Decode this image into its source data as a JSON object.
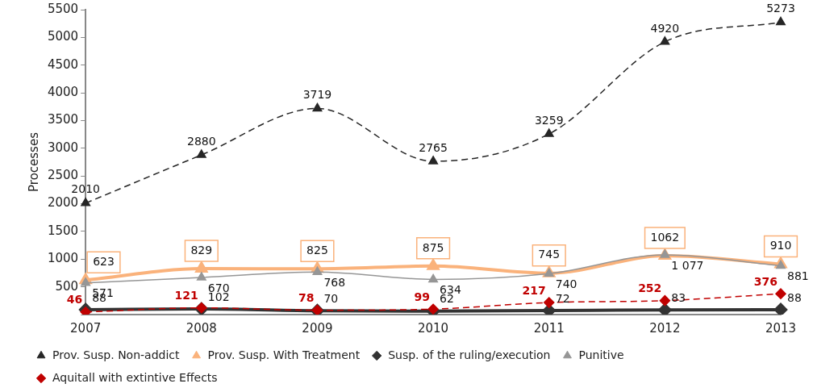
{
  "chart_data": {
    "type": "line",
    "ylabel": "Processes",
    "categories": [
      "2007",
      "2008",
      "2009",
      "2010",
      "2011",
      "2012",
      "2013"
    ],
    "ylim": [
      0,
      5500
    ],
    "yticks": [
      {
        "value": 0,
        "label": null
      },
      500,
      1000,
      1500,
      2000,
      2500,
      3000,
      3500,
      4000,
      4500,
      5000,
      5500
    ],
    "grid": false,
    "legend": "bottom",
    "series": [
      {
        "name": "Prov. Susp. Non-addict",
        "color": "#262626",
        "marker": "triangle",
        "line_style": "dashed",
        "values": [
          2010,
          2880,
          3719,
          2765,
          3259,
          4920,
          5273
        ]
      },
      {
        "name": "Prov. Susp. With Treatment",
        "color": "#fab27b",
        "marker": "triangle",
        "line_style": "solid",
        "values": [
          623,
          829,
          825,
          875,
          745,
          1062,
          910
        ]
      },
      {
        "name": "Susp. of the ruling/execution",
        "color": "#333333",
        "marker": "diamond",
        "line_style": "solid",
        "values": [
          88,
          102,
          70,
          62,
          72,
          83,
          88
        ]
      },
      {
        "name": "Punitive",
        "color": "#969696",
        "marker": "triangle",
        "line_style": "solid",
        "values": [
          571,
          670,
          768,
          634,
          740,
          1077,
          881
        ],
        "value_labels": [
          "571",
          "670",
          "768",
          "634",
          "740",
          "1 077",
          "881"
        ]
      },
      {
        "name": "Aquitall with extintive Effects",
        "color": "#c00000",
        "marker": "diamond",
        "line_style": "dashed",
        "values": [
          46,
          121,
          78,
          99,
          217,
          252,
          376
        ]
      }
    ],
    "data_labels": true
  }
}
